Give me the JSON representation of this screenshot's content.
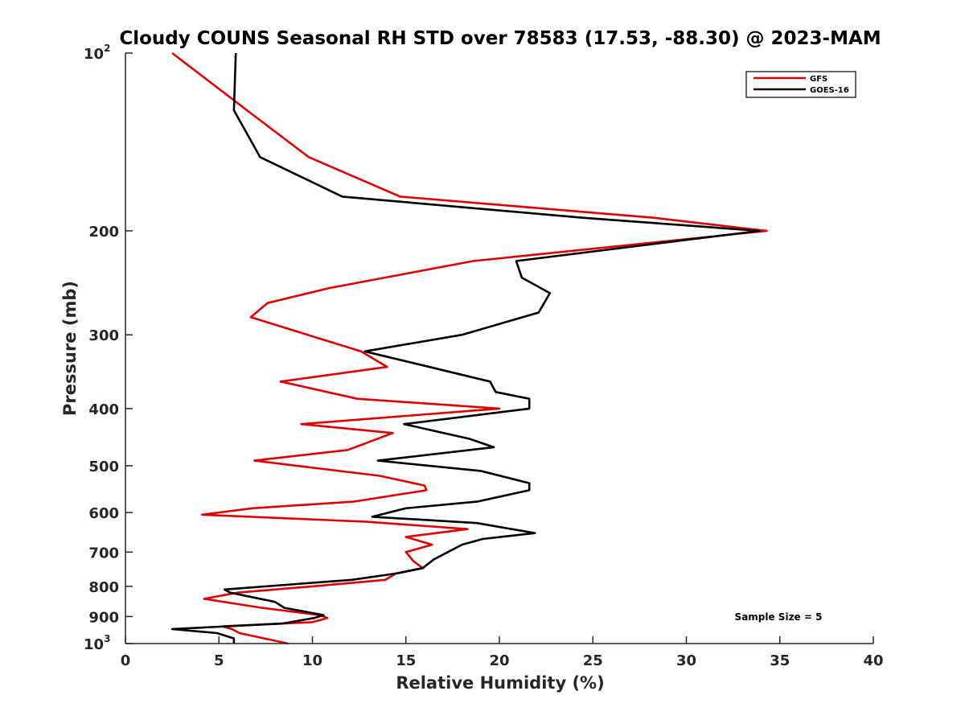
{
  "chart_data": {
    "type": "line",
    "title": "Cloudy COUNS Seasonal RH STD over 78583 (17.53, -88.30) @ 2023-MAM",
    "xlabel": "Relative Humidity (%)",
    "ylabel": "Pressure (mb)",
    "xlim": [
      0,
      40
    ],
    "ylim": [
      100,
      1000
    ],
    "yscale": "log",
    "yreversed": true,
    "grid": false,
    "legend_position": "top-right",
    "xticks": [
      0,
      5,
      10,
      15,
      20,
      25,
      30,
      35,
      40
    ],
    "yticks": [
      {
        "value": 100,
        "label": "10",
        "sup": "2"
      },
      {
        "value": 200,
        "label": "200"
      },
      {
        "value": 300,
        "label": "300"
      },
      {
        "value": 400,
        "label": "400"
      },
      {
        "value": 500,
        "label": "500"
      },
      {
        "value": 600,
        "label": "600"
      },
      {
        "value": 700,
        "label": "700"
      },
      {
        "value": 800,
        "label": "800"
      },
      {
        "value": 900,
        "label": "900"
      },
      {
        "value": 1000,
        "label": "10",
        "sup": "3"
      }
    ],
    "annotation": "Sample Size = 5",
    "series": [
      {
        "name": "GFS",
        "color": "#e00000",
        "points": [
          [
            2.5,
            100
          ],
          [
            6.5,
            125
          ],
          [
            9.8,
            150
          ],
          [
            14.7,
            175
          ],
          [
            28.2,
            190
          ],
          [
            34.3,
            200
          ],
          [
            18.6,
            225
          ],
          [
            10.9,
            250
          ],
          [
            7.6,
            265
          ],
          [
            6.7,
            280
          ],
          [
            12.6,
            320
          ],
          [
            14.0,
            340
          ],
          [
            8.3,
            360
          ],
          [
            12.4,
            385
          ],
          [
            20.0,
            400
          ],
          [
            9.4,
            425
          ],
          [
            14.3,
            440
          ],
          [
            11.9,
            470
          ],
          [
            6.9,
            490
          ],
          [
            13.6,
            520
          ],
          [
            16.0,
            540
          ],
          [
            16.1,
            550
          ],
          [
            12.2,
            575
          ],
          [
            6.8,
            590
          ],
          [
            4.1,
            605
          ],
          [
            12.9,
            622
          ],
          [
            18.3,
            640
          ],
          [
            15.0,
            660
          ],
          [
            16.4,
            680
          ],
          [
            15.0,
            700
          ],
          [
            15.4,
            725
          ],
          [
            15.9,
            745
          ],
          [
            14.5,
            760
          ],
          [
            13.9,
            780
          ],
          [
            10.0,
            800
          ],
          [
            6.0,
            820
          ],
          [
            4.2,
            840
          ],
          [
            7.3,
            870
          ],
          [
            10.4,
            895
          ],
          [
            10.8,
            905
          ],
          [
            10.0,
            920
          ],
          [
            5.2,
            935
          ],
          [
            5.7,
            945
          ],
          [
            6.1,
            960
          ],
          [
            8.7,
            1000
          ]
        ]
      },
      {
        "name": "GOES-16",
        "color": "#000000",
        "points": [
          [
            5.9,
            100
          ],
          [
            5.8,
            125
          ],
          [
            7.2,
            150
          ],
          [
            11.6,
            175
          ],
          [
            24.4,
            190
          ],
          [
            33.9,
            200
          ],
          [
            20.9,
            225
          ],
          [
            21.2,
            240
          ],
          [
            22.7,
            255
          ],
          [
            22.1,
            275
          ],
          [
            18.0,
            300
          ],
          [
            12.8,
            320
          ],
          [
            19.5,
            360
          ],
          [
            19.8,
            375
          ],
          [
            21.6,
            385
          ],
          [
            21.6,
            400
          ],
          [
            14.9,
            425
          ],
          [
            18.4,
            450
          ],
          [
            19.7,
            465
          ],
          [
            13.5,
            490
          ],
          [
            19.0,
            510
          ],
          [
            21.6,
            535
          ],
          [
            21.6,
            550
          ],
          [
            18.8,
            575
          ],
          [
            15.0,
            590
          ],
          [
            13.2,
            610
          ],
          [
            18.8,
            625
          ],
          [
            21.9,
            650
          ],
          [
            19.1,
            665
          ],
          [
            18.0,
            680
          ],
          [
            16.5,
            720
          ],
          [
            15.9,
            745
          ],
          [
            14.6,
            760
          ],
          [
            12.1,
            780
          ],
          [
            5.3,
            810
          ],
          [
            5.6,
            820
          ],
          [
            8.0,
            850
          ],
          [
            8.5,
            870
          ],
          [
            10.6,
            895
          ],
          [
            10.1,
            905
          ],
          [
            8.4,
            925
          ],
          [
            2.5,
            945
          ],
          [
            4.9,
            960
          ],
          [
            5.8,
            980
          ],
          [
            5.8,
            1000
          ]
        ]
      }
    ]
  }
}
